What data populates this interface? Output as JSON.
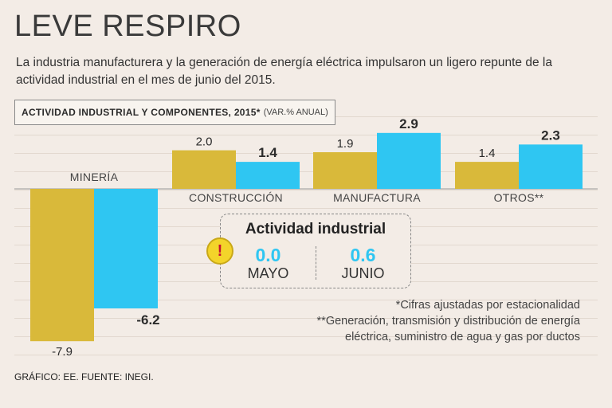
{
  "header": {
    "title": "LEVE RESPIRO",
    "subtitle": "La industria manufacturera y la generación de energía eléctrica impulsaron un ligero repunte de la actividad industrial en el mes de junio del 2015."
  },
  "chart_label": {
    "main": "ACTIVIDAD INDUSTRIAL Y COMPONENTES, 2015*",
    "unit": "(VAR.% ANUAL)"
  },
  "chart_data": {
    "type": "bar",
    "title": "ACTIVIDAD INDUSTRIAL Y COMPONENTES, 2015*",
    "ylabel": "VAR.% ANUAL",
    "categories": [
      "MINERÍA",
      "CONSTRUCCIÓN",
      "MANUFACTURA",
      "OTROS**"
    ],
    "series": [
      {
        "name": "MAYO",
        "color": "#d9b93a",
        "values": [
          -7.9,
          2.0,
          1.9,
          1.4
        ],
        "labels": [
          "-7.9",
          "2.0",
          "1.9",
          "1.4"
        ]
      },
      {
        "name": "JUNIO",
        "color": "#2fc6f2",
        "values": [
          -6.2,
          1.4,
          2.9,
          2.3
        ],
        "labels": [
          "-6.2",
          "1.4",
          "2.9",
          "2.3"
        ]
      }
    ],
    "ylim": [
      -7.9,
      2.9
    ]
  },
  "callout": {
    "title": "Actividad industrial",
    "may_value": "0.0",
    "may_label": "MAYO",
    "june_value": "0.6",
    "june_label": "JUNIO",
    "icon": "alert-icon",
    "icon_glyph": "!"
  },
  "notes": {
    "line1": "*Cifras ajustadas por estacionalidad",
    "line2": "**Generación, transmisión y distribución de energía",
    "line3": "eléctrica, suministro de agua y gas por ductos"
  },
  "source": "GRÁFICO: EE. FUENTE: INEGI."
}
